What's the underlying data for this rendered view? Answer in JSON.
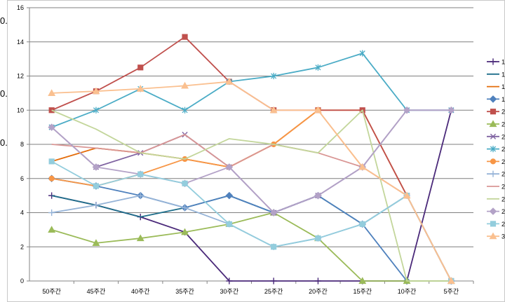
{
  "background_fragments": [
    "0.",
    "0.",
    "0."
  ],
  "chart_data": {
    "type": "line",
    "categories": [
      "50주간",
      "45주간",
      "40주간",
      "35주간",
      "30주간",
      "25주간",
      "20주간",
      "15주간",
      "10주간",
      "5주간"
    ],
    "ylim": [
      0,
      16
    ],
    "yticks": [
      0,
      2,
      4,
      6,
      8,
      10,
      12,
      14,
      16
    ],
    "grid": true,
    "legend_position": "right (cropped)",
    "series": [
      {
        "label": "1",
        "color": "#4b2a7a",
        "marker": "plus",
        "values": [
          5,
          4.44,
          3.75,
          2.86,
          0,
          0,
          0,
          0,
          0,
          10
        ]
      },
      {
        "label": "1",
        "color": "#1f6f8b",
        "marker": "none",
        "values": [
          5,
          4.44,
          3.75,
          4.29,
          5,
          4,
          5,
          3.33,
          5,
          0
        ]
      },
      {
        "label": "1",
        "color": "#e46c0a",
        "marker": "none",
        "values": [
          7,
          7.78,
          7.5,
          7.14,
          6.67,
          8,
          10,
          10,
          5,
          0
        ]
      },
      {
        "label": "1",
        "color": "#4f81bd",
        "marker": "diamond",
        "values": [
          6,
          5.56,
          5,
          4.29,
          5,
          4,
          5,
          3.33,
          0,
          0
        ]
      },
      {
        "label": "2",
        "color": "#c0504d",
        "marker": "square",
        "values": [
          10,
          11.11,
          12.5,
          14.29,
          11.67,
          10,
          10,
          10,
          5,
          0
        ]
      },
      {
        "label": "2",
        "color": "#9bbb59",
        "marker": "triangle",
        "values": [
          3,
          2.22,
          2.5,
          2.86,
          3.33,
          4,
          2.5,
          0,
          0,
          0
        ]
      },
      {
        "label": "2",
        "color": "#8064a2",
        "marker": "x",
        "values": [
          9,
          6.67,
          7.5,
          8.57,
          6.67,
          4,
          5,
          6.67,
          10,
          10
        ]
      },
      {
        "label": "2",
        "color": "#4bacc6",
        "marker": "star",
        "values": [
          9,
          10,
          11.25,
          10,
          11.67,
          12,
          12.5,
          13.33,
          10,
          10
        ]
      },
      {
        "label": "2",
        "color": "#f79646",
        "marker": "circle",
        "values": [
          6,
          5.56,
          6.25,
          7.14,
          6.67,
          8,
          10,
          6.67,
          5,
          0
        ]
      },
      {
        "label": "2",
        "color": "#95b3d7",
        "marker": "plus",
        "values": [
          4,
          4.44,
          5,
          4.29,
          3.33,
          2,
          2.5,
          3.33,
          5,
          0
        ]
      },
      {
        "label": "2",
        "color": "#d99694",
        "marker": "none",
        "values": [
          8,
          7.78,
          7.5,
          8.57,
          6.67,
          8,
          7.5,
          6.67,
          5,
          0
        ]
      },
      {
        "label": "2",
        "color": "#c3d69b",
        "marker": "none",
        "values": [
          10,
          8.89,
          7.5,
          7.14,
          8.33,
          8,
          7.5,
          10,
          0,
          0
        ]
      },
      {
        "label": "2",
        "color": "#b3a2c7",
        "marker": "diamond",
        "values": [
          9,
          6.67,
          6.25,
          5.71,
          6.67,
          4,
          5,
          6.67,
          10,
          10
        ]
      },
      {
        "label": "2",
        "color": "#93cddd",
        "marker": "square",
        "values": [
          7,
          5.56,
          6.25,
          5.71,
          3.33,
          2,
          2.5,
          3.33,
          5,
          0
        ]
      },
      {
        "label": "3",
        "color": "#fac090",
        "marker": "triangle",
        "values": [
          11,
          11.11,
          11.25,
          11.43,
          11.67,
          10,
          10,
          6.67,
          5,
          0
        ]
      }
    ]
  }
}
